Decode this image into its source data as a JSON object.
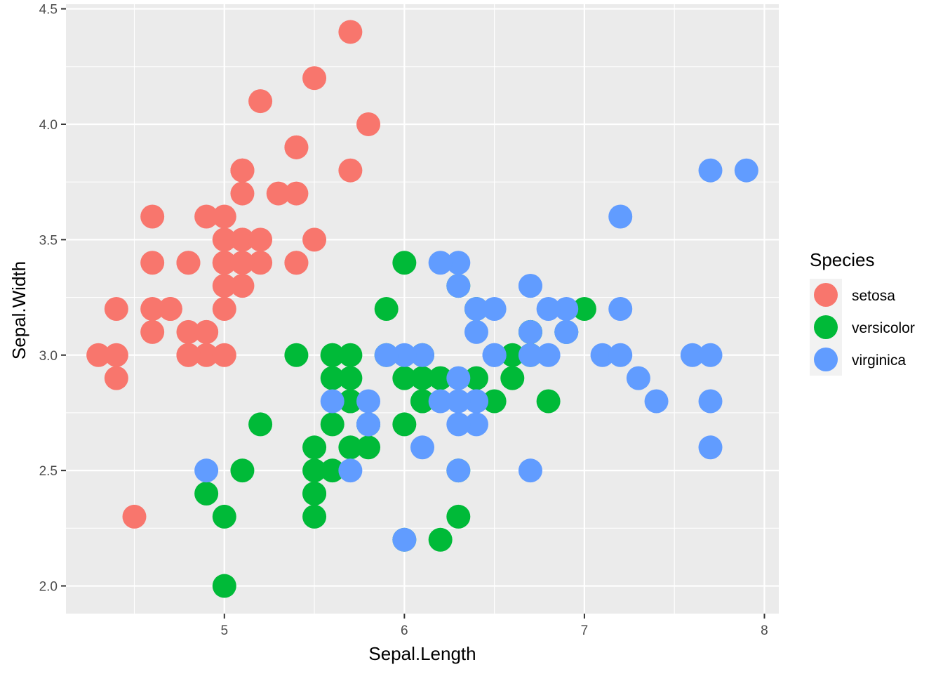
{
  "chart_data": {
    "type": "scatter",
    "xlabel": "Sepal.Length",
    "ylabel": "Sepal.Width",
    "xlim": [
      4.3,
      7.9
    ],
    "ylim": [
      2.0,
      4.4
    ],
    "x_ticks": [
      5,
      6,
      7,
      8
    ],
    "x_tick_labels": [
      "5",
      "6",
      "7",
      "8"
    ],
    "y_ticks": [
      2.0,
      2.5,
      3.0,
      3.5,
      4.0,
      4.5
    ],
    "y_tick_labels": [
      "2.0",
      "2.5",
      "3.0",
      "3.5",
      "4.0",
      "4.5"
    ],
    "grid": true,
    "legend": {
      "title": "Species",
      "placement": "right"
    },
    "series": [
      {
        "name": "setosa",
        "color": "#F8766D",
        "points": [
          [
            5.1,
            3.5
          ],
          [
            4.9,
            3.0
          ],
          [
            4.7,
            3.2
          ],
          [
            4.6,
            3.1
          ],
          [
            5.0,
            3.6
          ],
          [
            5.4,
            3.9
          ],
          [
            4.6,
            3.4
          ],
          [
            5.0,
            3.4
          ],
          [
            4.4,
            2.9
          ],
          [
            4.9,
            3.1
          ],
          [
            5.4,
            3.7
          ],
          [
            4.8,
            3.4
          ],
          [
            4.8,
            3.0
          ],
          [
            4.3,
            3.0
          ],
          [
            5.8,
            4.0
          ],
          [
            5.7,
            4.4
          ],
          [
            5.4,
            3.9
          ],
          [
            5.1,
            3.5
          ],
          [
            5.7,
            3.8
          ],
          [
            5.1,
            3.8
          ],
          [
            5.4,
            3.4
          ],
          [
            5.1,
            3.7
          ],
          [
            4.6,
            3.6
          ],
          [
            5.1,
            3.3
          ],
          [
            4.8,
            3.4
          ],
          [
            5.0,
            3.0
          ],
          [
            5.0,
            3.4
          ],
          [
            5.2,
            3.5
          ],
          [
            5.2,
            3.4
          ],
          [
            4.7,
            3.2
          ],
          [
            4.8,
            3.1
          ],
          [
            5.4,
            3.4
          ],
          [
            5.2,
            4.1
          ],
          [
            5.5,
            4.2
          ],
          [
            4.9,
            3.1
          ],
          [
            5.0,
            3.2
          ],
          [
            5.5,
            3.5
          ],
          [
            4.9,
            3.6
          ],
          [
            4.4,
            3.0
          ],
          [
            5.1,
            3.4
          ],
          [
            5.0,
            3.5
          ],
          [
            4.5,
            2.3
          ],
          [
            4.4,
            3.2
          ],
          [
            5.0,
            3.5
          ],
          [
            5.1,
            3.8
          ],
          [
            4.8,
            3.0
          ],
          [
            5.1,
            3.8
          ],
          [
            4.6,
            3.2
          ],
          [
            5.3,
            3.7
          ],
          [
            5.0,
            3.3
          ]
        ]
      },
      {
        "name": "versicolor",
        "color": "#00BA38",
        "points": [
          [
            7.0,
            3.2
          ],
          [
            6.4,
            3.2
          ],
          [
            6.9,
            3.1
          ],
          [
            5.5,
            2.3
          ],
          [
            6.5,
            2.8
          ],
          [
            5.7,
            2.8
          ],
          [
            6.3,
            3.3
          ],
          [
            4.9,
            2.4
          ],
          [
            6.6,
            2.9
          ],
          [
            5.2,
            2.7
          ],
          [
            5.0,
            2.0
          ],
          [
            5.9,
            3.0
          ],
          [
            6.0,
            2.2
          ],
          [
            6.1,
            2.9
          ],
          [
            5.6,
            2.9
          ],
          [
            6.7,
            3.1
          ],
          [
            5.6,
            3.0
          ],
          [
            5.8,
            2.7
          ],
          [
            6.2,
            2.2
          ],
          [
            5.6,
            2.5
          ],
          [
            5.9,
            3.2
          ],
          [
            6.1,
            2.8
          ],
          [
            6.3,
            2.5
          ],
          [
            6.1,
            2.8
          ],
          [
            6.4,
            2.9
          ],
          [
            6.6,
            3.0
          ],
          [
            6.8,
            2.8
          ],
          [
            6.7,
            3.0
          ],
          [
            6.0,
            2.9
          ],
          [
            5.7,
            2.6
          ],
          [
            5.5,
            2.4
          ],
          [
            5.5,
            2.4
          ],
          [
            5.8,
            2.7
          ],
          [
            6.0,
            2.7
          ],
          [
            5.4,
            3.0
          ],
          [
            6.0,
            3.4
          ],
          [
            6.7,
            3.1
          ],
          [
            6.3,
            2.3
          ],
          [
            5.6,
            3.0
          ],
          [
            5.5,
            2.5
          ],
          [
            5.5,
            2.6
          ],
          [
            6.1,
            3.0
          ],
          [
            5.8,
            2.6
          ],
          [
            5.0,
            2.3
          ],
          [
            5.6,
            2.7
          ],
          [
            5.7,
            3.0
          ],
          [
            5.7,
            2.9
          ],
          [
            6.2,
            2.9
          ],
          [
            5.1,
            2.5
          ],
          [
            5.7,
            2.8
          ]
        ]
      },
      {
        "name": "virginica",
        "color": "#619CFF",
        "points": [
          [
            6.3,
            3.3
          ],
          [
            5.8,
            2.7
          ],
          [
            7.1,
            3.0
          ],
          [
            6.3,
            2.9
          ],
          [
            6.5,
            3.0
          ],
          [
            7.6,
            3.0
          ],
          [
            4.9,
            2.5
          ],
          [
            7.3,
            2.9
          ],
          [
            6.7,
            2.5
          ],
          [
            7.2,
            3.6
          ],
          [
            6.5,
            3.2
          ],
          [
            6.4,
            2.7
          ],
          [
            6.8,
            3.0
          ],
          [
            5.7,
            2.5
          ],
          [
            5.8,
            2.8
          ],
          [
            6.4,
            3.2
          ],
          [
            6.5,
            3.0
          ],
          [
            7.7,
            3.8
          ],
          [
            7.7,
            2.6
          ],
          [
            6.0,
            2.2
          ],
          [
            6.9,
            3.2
          ],
          [
            5.6,
            2.8
          ],
          [
            7.7,
            2.8
          ],
          [
            6.3,
            2.7
          ],
          [
            6.7,
            3.3
          ],
          [
            7.2,
            3.2
          ],
          [
            6.2,
            2.8
          ],
          [
            6.1,
            3.0
          ],
          [
            6.4,
            2.8
          ],
          [
            7.2,
            3.0
          ],
          [
            7.4,
            2.8
          ],
          [
            7.9,
            3.8
          ],
          [
            6.4,
            2.8
          ],
          [
            6.3,
            2.8
          ],
          [
            6.1,
            2.6
          ],
          [
            7.7,
            3.0
          ],
          [
            6.3,
            3.4
          ],
          [
            6.4,
            3.1
          ],
          [
            6.0,
            3.0
          ],
          [
            6.9,
            3.1
          ],
          [
            6.7,
            3.1
          ],
          [
            6.9,
            3.1
          ],
          [
            5.8,
            2.7
          ],
          [
            6.8,
            3.2
          ],
          [
            6.7,
            3.3
          ],
          [
            6.7,
            3.0
          ],
          [
            6.3,
            2.5
          ],
          [
            6.5,
            3.0
          ],
          [
            6.2,
            3.4
          ],
          [
            5.9,
            3.0
          ]
        ]
      }
    ]
  }
}
